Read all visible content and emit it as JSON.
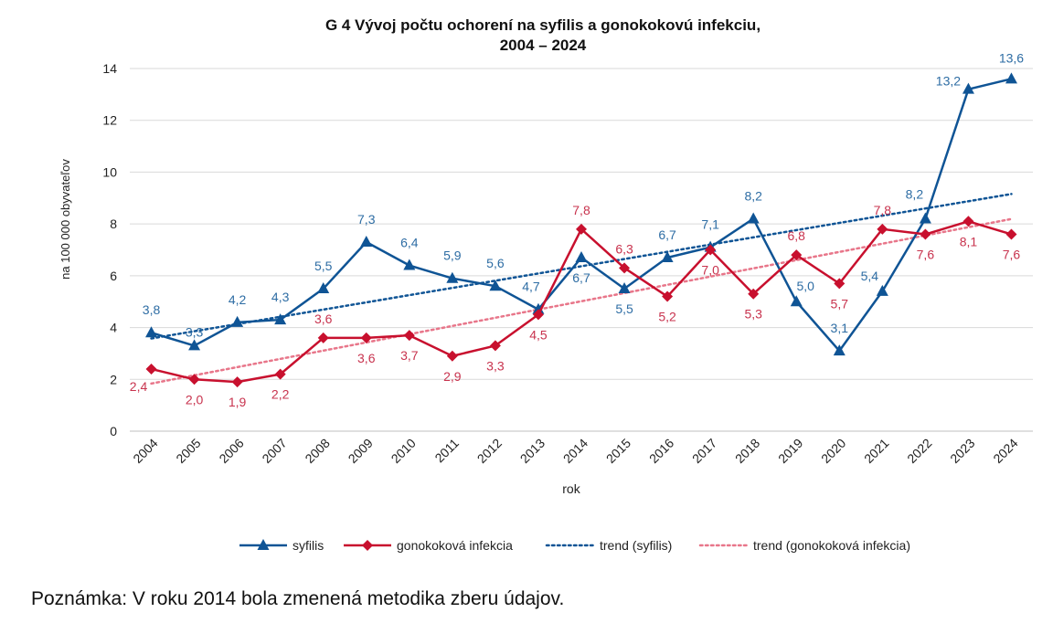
{
  "chart_data": {
    "type": "line",
    "title_line1": "G 4 Vývoj počtu ochorení na syfilis  a gonokokovú infekciu,",
    "title_line2": "2004 – 2024",
    "xlabel": "rok",
    "ylabel": "na 100 000 obyvateľov",
    "ylim": [
      0,
      14
    ],
    "yticks": [
      0,
      2,
      4,
      6,
      8,
      10,
      12,
      14
    ],
    "grid": true,
    "legend_position": "bottom",
    "categories": [
      "2004",
      "2005",
      "2006",
      "2007",
      "2008",
      "2009",
      "2010",
      "2011",
      "2012",
      "2013",
      "2014",
      "2015",
      "2016",
      "2017",
      "2018",
      "2019",
      "2020",
      "2021",
      "2022",
      "2023",
      "2024"
    ],
    "series": [
      {
        "name": "syfilis",
        "color": "#0F5495",
        "marker": "triangle",
        "values": [
          3.8,
          3.3,
          4.2,
          4.3,
          5.5,
          7.3,
          6.4,
          5.9,
          5.6,
          4.7,
          6.7,
          5.5,
          6.7,
          7.1,
          8.2,
          5.0,
          3.1,
          5.4,
          8.2,
          13.2,
          13.6
        ]
      },
      {
        "name": "gonokoková infekcia",
        "color": "#C8102E",
        "marker": "diamond",
        "values": [
          2.4,
          2.0,
          1.9,
          2.2,
          3.6,
          3.6,
          3.7,
          2.9,
          3.3,
          4.5,
          7.8,
          6.3,
          5.2,
          7.0,
          5.3,
          6.8,
          5.7,
          7.8,
          7.6,
          8.1,
          7.6
        ]
      }
    ],
    "trendlines": [
      {
        "name": "trend (syfilis)",
        "of": "syfilis",
        "type": "linear",
        "color": "#0F5495",
        "style": "dotted"
      },
      {
        "name": "trend (gonokoková infekcia)",
        "of": "gonokoková infekcia",
        "type": "linear",
        "color": "#E8768A",
        "style": "dotted"
      }
    ]
  },
  "note": "Poznámka: V roku 2014 bola zmenená metodika zberu údajov."
}
